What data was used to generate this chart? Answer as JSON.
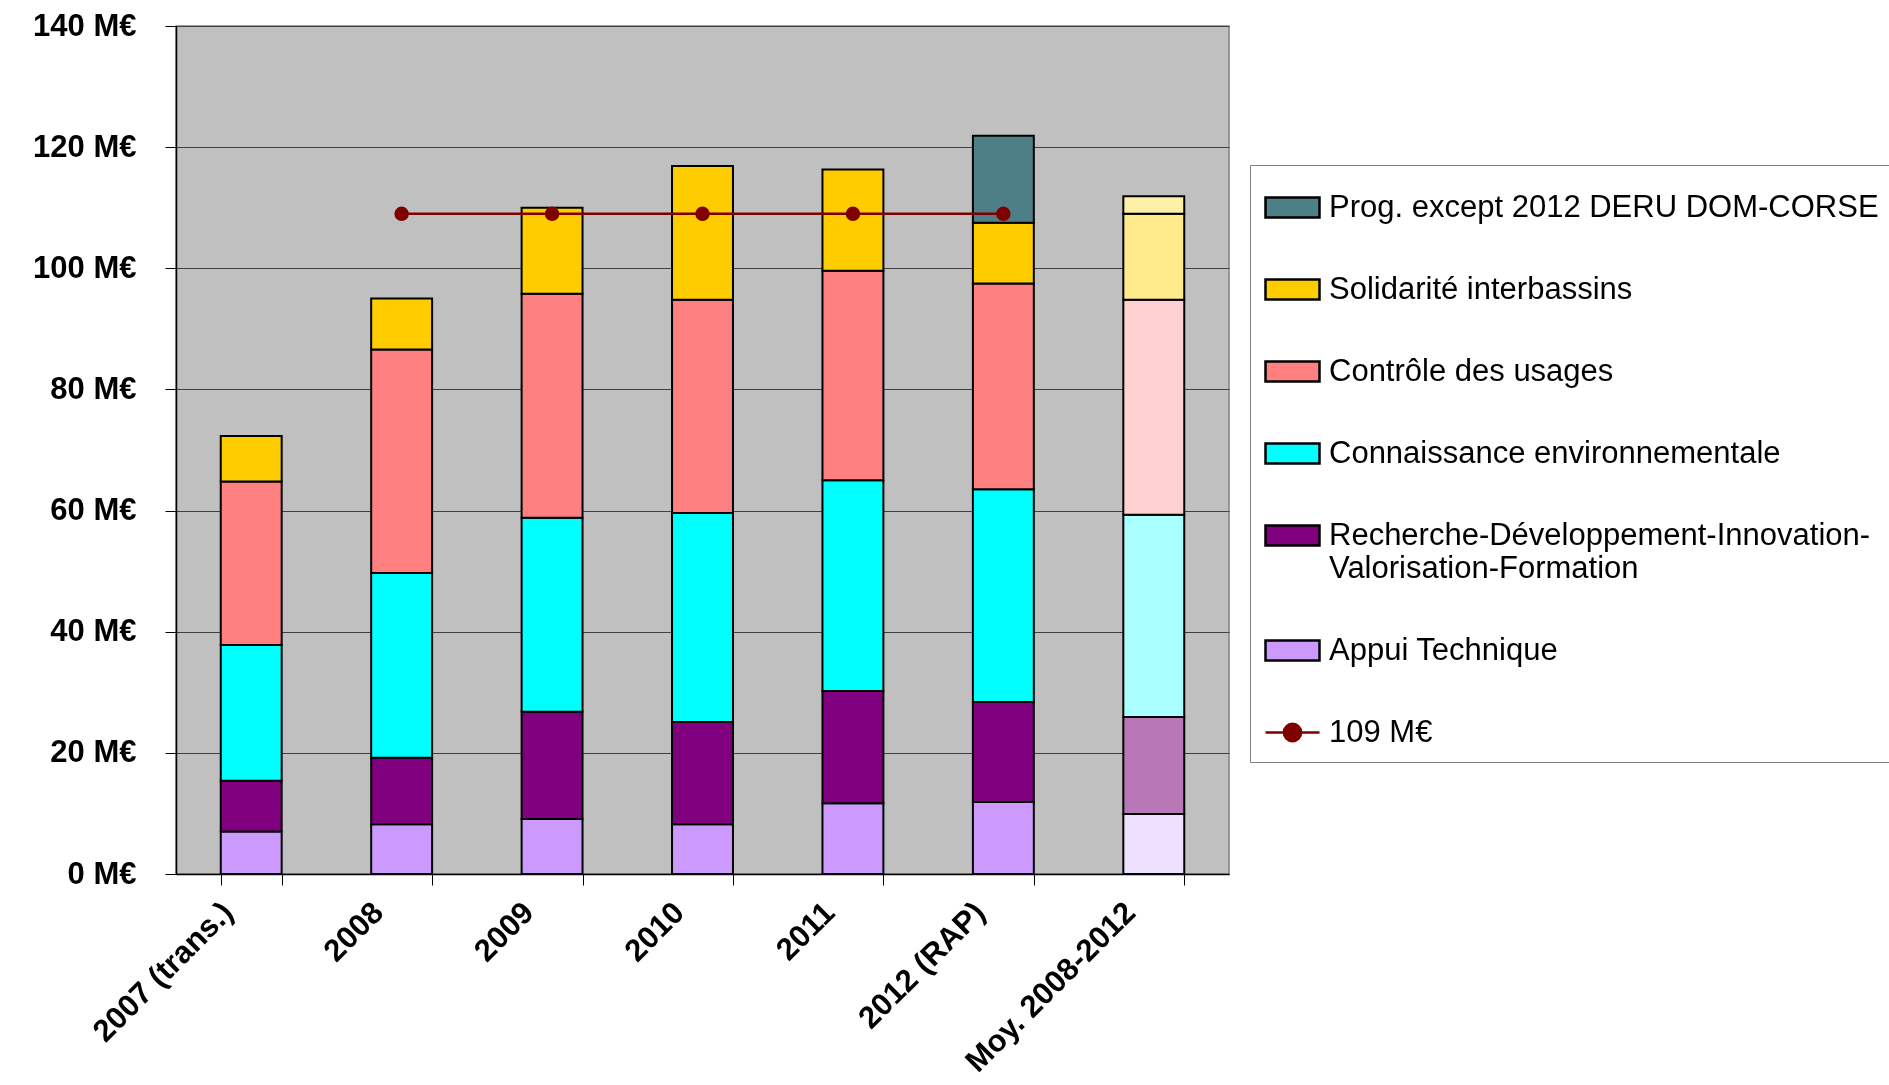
{
  "chart_data": {
    "type": "bar",
    "stacked": true,
    "categories": [
      "2007 (trans.)",
      "2008",
      "2009",
      "2010",
      "2011",
      "2012 (RAP)",
      "Moy. 2008-2012"
    ],
    "series": [
      {
        "name": "Appui Technique",
        "color": "#cc99ff",
        "colors": [
          "#cc99ff",
          "#cc99ff",
          "#cc99ff",
          "#cc99ff",
          "#cc99ff",
          "#cc99ff",
          "#efe0ff"
        ],
        "values": [
          7.0,
          8.2,
          9.1,
          8.2,
          11.7,
          11.9,
          9.9
        ]
      },
      {
        "name": "Recherche-Développement-Innovation-Valorisation-Formation",
        "color": "#800080",
        "colors": [
          "#800080",
          "#800080",
          "#800080",
          "#800080",
          "#800080",
          "#800080",
          "#b878b8"
        ],
        "values": [
          8.4,
          11.0,
          17.7,
          16.9,
          18.5,
          16.5,
          16.0
        ]
      },
      {
        "name": "Connaissance environnementale",
        "color": "#00ffff",
        "colors": [
          "#00ffff",
          "#00ffff",
          "#00ffff",
          "#00ffff",
          "#00ffff",
          "#00ffff",
          "#aaffff"
        ],
        "values": [
          22.4,
          30.5,
          32.0,
          34.5,
          34.8,
          35.1,
          33.4
        ]
      },
      {
        "name": "Contrôle des usages",
        "color": "#ff8080",
        "colors": [
          "#ff8080",
          "#ff8080",
          "#ff8080",
          "#ff8080",
          "#ff8080",
          "#ff8080",
          "#ffd0d0"
        ],
        "values": [
          27.0,
          36.9,
          37.0,
          35.2,
          34.6,
          34.0,
          35.5
        ]
      },
      {
        "name": "Solidarité interbassins",
        "color": "#ffcc00",
        "colors": [
          "#ffcc00",
          "#ffcc00",
          "#ffcc00",
          "#ffcc00",
          "#ffcc00",
          "#ffcc00",
          "#ffea8c"
        ],
        "values": [
          7.5,
          8.4,
          14.2,
          22.1,
          16.7,
          10.0,
          14.2
        ]
      },
      {
        "name": "Prog. except 2012 DERU DOM-CORSE",
        "color": "#4f7f86",
        "colors": [
          null,
          null,
          null,
          null,
          null,
          "#4f7f86",
          "#fff0a8"
        ],
        "values": [
          null,
          null,
          null,
          null,
          null,
          14.4,
          2.9
        ]
      },
      {
        "name": "109 M€",
        "type": "line",
        "color": "#800000",
        "values": [
          null,
          109,
          109,
          109,
          109,
          109,
          null
        ]
      }
    ],
    "ylim": [
      0,
      140
    ],
    "yticks": [
      {
        "value": 0,
        "label": "0 M€"
      },
      {
        "value": 20,
        "label": "20 M€"
      },
      {
        "value": 40,
        "label": "40 M€"
      },
      {
        "value": 60,
        "label": "60 M€"
      },
      {
        "value": 80,
        "label": "80 M€"
      },
      {
        "value": 100,
        "label": "100 M€"
      },
      {
        "value": 120,
        "label": "120 M€"
      },
      {
        "value": 140,
        "label": "140 M€"
      }
    ],
    "grid": "y",
    "legend": "right",
    "marker": "circle"
  }
}
